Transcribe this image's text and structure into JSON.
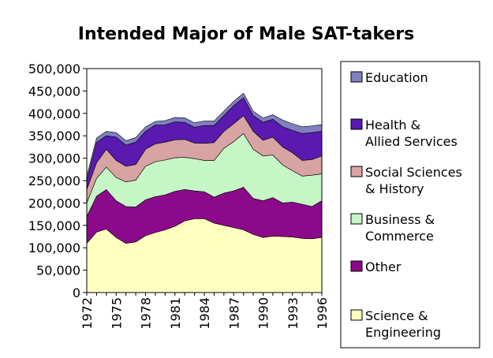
{
  "chart_data": {
    "type": "area",
    "stacked": true,
    "title": "Intended Major of Male SAT-takers",
    "xlabel": "",
    "ylabel": "",
    "x": [
      1972,
      1973,
      1974,
      1975,
      1976,
      1977,
      1978,
      1979,
      1980,
      1981,
      1982,
      1983,
      1984,
      1985,
      1986,
      1987,
      1988,
      1989,
      1990,
      1991,
      1992,
      1993,
      1994,
      1995,
      1996
    ],
    "x_tick_labels": [
      "1972",
      "1975",
      "1978",
      "1981",
      "1984",
      "1987",
      "1990",
      "1993",
      "1996"
    ],
    "ylim": [
      0,
      500000
    ],
    "y_tick_labels": [
      "0",
      "50,000",
      "100,000",
      "150,000",
      "200,000",
      "250,000",
      "300,000",
      "350,000",
      "400,000",
      "450,000",
      "500,000"
    ],
    "grid": false,
    "legend_position": "right",
    "series": [
      {
        "name": "Science & Engineering",
        "color": "#ffffc0",
        "values": [
          110000,
          135000,
          142000,
          123000,
          110000,
          113000,
          127000,
          134000,
          140000,
          148000,
          160000,
          165000,
          165000,
          155000,
          150000,
          145000,
          140000,
          130000,
          123000,
          126000,
          125000,
          124000,
          121000,
          120000,
          123000
        ]
      },
      {
        "name": "Other",
        "color": "#8b0a8b",
        "values": [
          60000,
          80000,
          88000,
          82000,
          82000,
          78000,
          80000,
          80000,
          78000,
          78000,
          70000,
          62000,
          60000,
          58000,
          72000,
          82000,
          95000,
          80000,
          82000,
          86000,
          75000,
          78000,
          76000,
          72000,
          82000
        ]
      },
      {
        "name": "Business & Commerce",
        "color": "#c6f5c6",
        "values": [
          30000,
          40000,
          50000,
          52000,
          55000,
          60000,
          75000,
          78000,
          78000,
          75000,
          72000,
          72000,
          70000,
          82000,
          100000,
          110000,
          120000,
          110000,
          100000,
          95000,
          85000,
          70000,
          63000,
          70000,
          60000
        ]
      },
      {
        "name": "Social Sciences & History",
        "color": "#d8a3a3",
        "values": [
          30000,
          35000,
          40000,
          38000,
          35000,
          35000,
          38000,
          40000,
          40000,
          40000,
          40000,
          35000,
          38000,
          40000,
          38000,
          40000,
          40000,
          40000,
          35000,
          40000,
          40000,
          40000,
          35000,
          35000,
          40000
        ]
      },
      {
        "name": "Health & Allied Services",
        "color": "#5a1ab0",
        "values": [
          20000,
          45000,
          30000,
          52000,
          47000,
          50000,
          40000,
          42000,
          38000,
          40000,
          38000,
          35000,
          40000,
          38000,
          35000,
          40000,
          40000,
          35000,
          40000,
          40000,
          45000,
          50000,
          60000,
          60000,
          55000
        ]
      },
      {
        "name": "Education",
        "color": "#8080c0",
        "values": [
          10000,
          10000,
          10000,
          10000,
          10000,
          10000,
          10000,
          8000,
          10000,
          10000,
          10000,
          10000,
          10000,
          10000,
          10000,
          10000,
          10000,
          10000,
          10000,
          10000,
          15000,
          15000,
          15000,
          15000,
          15000
        ]
      }
    ]
  }
}
